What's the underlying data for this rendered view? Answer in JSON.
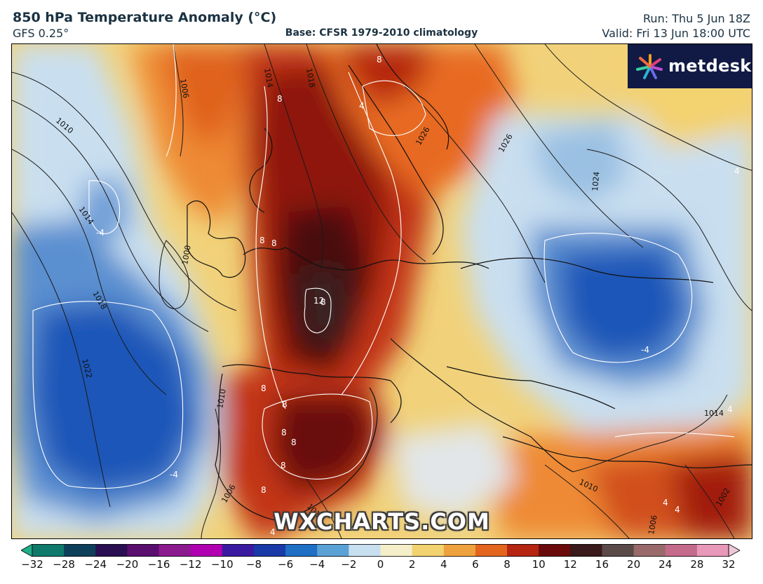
{
  "header": {
    "title": "850 hPa Temperature Anomaly (°C)",
    "model": "GFS 0.25°",
    "base": "Base: CFSR 1979-2010 climatology",
    "run": "Run: Thu 5 Jun 18Z",
    "valid": "Valid: Fri 13 Jun 18:00 UTC"
  },
  "brand": {
    "name": "metdesk",
    "icon": "metdesk-star-logo-icon"
  },
  "watermark": "WXCHARTS.COM",
  "colorbar": {
    "ticks": [
      "−32",
      "−28",
      "−24",
      "−20",
      "−16",
      "−12",
      "−10",
      "−8",
      "−6",
      "−4",
      "−2",
      "0",
      "2",
      "4",
      "6",
      "8",
      "10",
      "12",
      "16",
      "20",
      "24",
      "28",
      "32"
    ],
    "colors": [
      "#1fae8a",
      "#0f7a6c",
      "#0e3f5a",
      "#2a0e52",
      "#5a0e6e",
      "#8a1a8e",
      "#b000b0",
      "#3a1aa0",
      "#1a3aa8",
      "#1f6fc4",
      "#5aa2d6",
      "#c8dff0",
      "#f4efc8",
      "#f3d270",
      "#eea23e",
      "#e3651e",
      "#b52510",
      "#6a0a0a",
      "#3a1a1a",
      "#5a4a48",
      "#9a6a6a",
      "#c46a8a",
      "#e898b8",
      "#f0c8d8"
    ]
  },
  "map_labels": {
    "isobars": [
      "1006",
      "1010",
      "1014",
      "1018",
      "1022",
      "1010",
      "1014",
      "1018",
      "1026",
      "1026",
      "1024",
      "1014",
      "1010",
      "1002",
      "1006",
      "1010",
      "1006",
      "1000"
    ],
    "anomalies": [
      "8",
      "8",
      "8",
      "8",
      "8",
      "12",
      "8",
      "8",
      "8",
      "8",
      "8",
      "8",
      "4",
      "4",
      "4",
      "4",
      "-4",
      "-4",
      "-4",
      "4",
      "4"
    ]
  },
  "colors": {
    "ink": "#1b3242",
    "brand_bg": "#101a44"
  }
}
